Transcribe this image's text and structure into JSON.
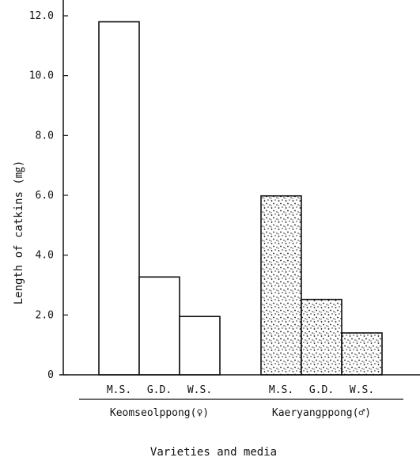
{
  "chart_data": {
    "type": "bar",
    "ylabel": "Length of catkins (㎎)",
    "xlabel": "Varieties and media",
    "ylim": [
      0,
      12
    ],
    "yticks": [
      "0",
      "2.0",
      "4.0",
      "6.0",
      "8.0",
      "10.0",
      "12.0"
    ],
    "grid": false,
    "groups": [
      {
        "name": "Keomseolppong(♀)",
        "fill": "plain",
        "categories": [
          "M.S.",
          "G.D.",
          "W.S."
        ],
        "values": [
          11.8,
          3.27,
          1.95
        ]
      },
      {
        "name": "Kaeryangppong(♂)",
        "fill": "stippled",
        "categories": [
          "M.S.",
          "G.D.",
          "W.S."
        ],
        "values": [
          5.98,
          2.52,
          1.4
        ]
      }
    ]
  }
}
